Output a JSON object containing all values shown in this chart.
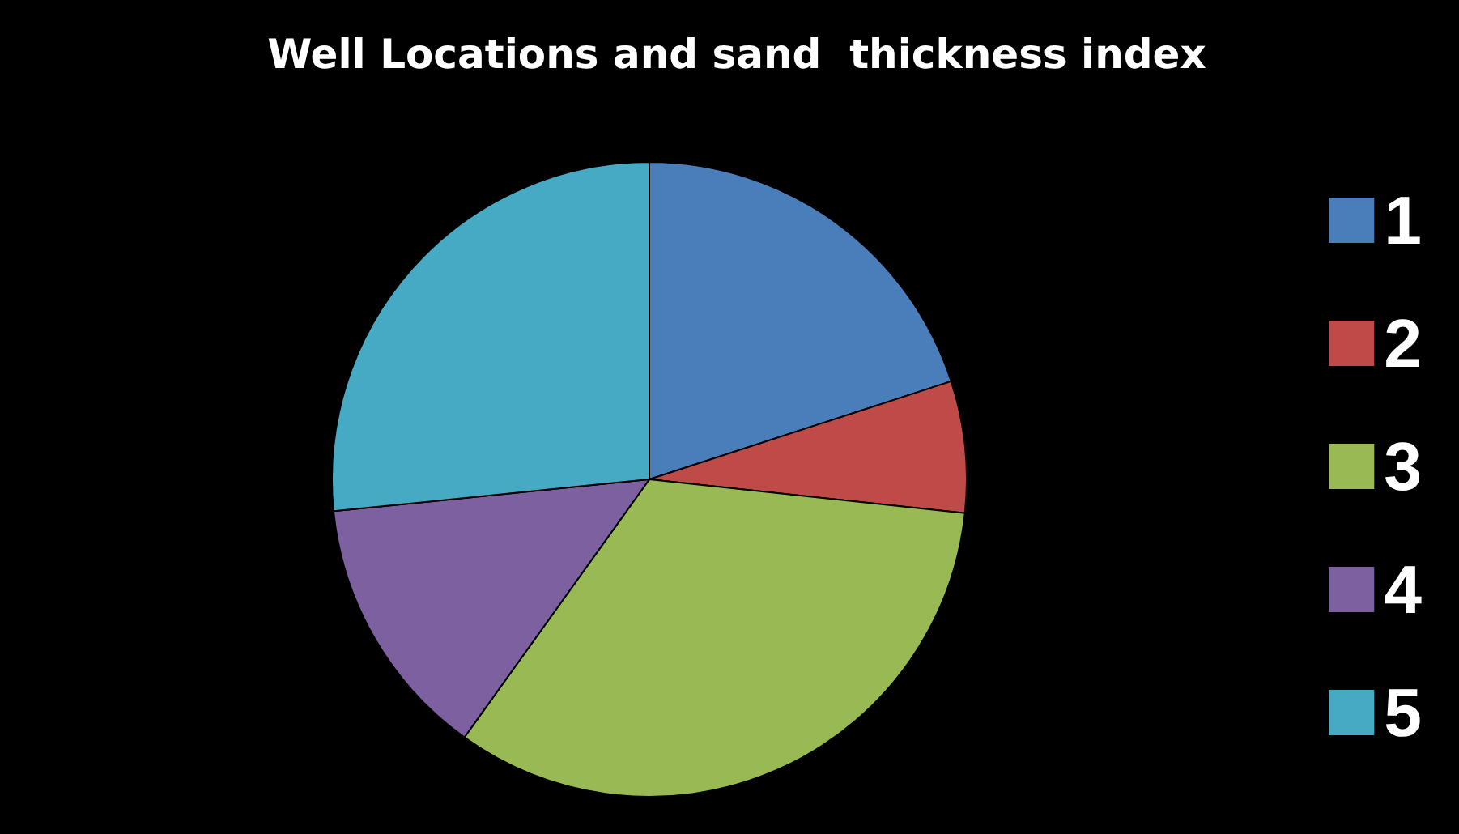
{
  "chart_data": {
    "type": "pie",
    "title": "Well Locations and sand  thickness index",
    "categories": [
      "1",
      "2",
      "3",
      "4",
      "5"
    ],
    "values": [
      20,
      6.7,
      33.2,
      13.5,
      26.6
    ],
    "colors": [
      "#4a7ebb",
      "#be4b48",
      "#98b954",
      "#7d60a0",
      "#46aac5"
    ],
    "legend": "right"
  }
}
